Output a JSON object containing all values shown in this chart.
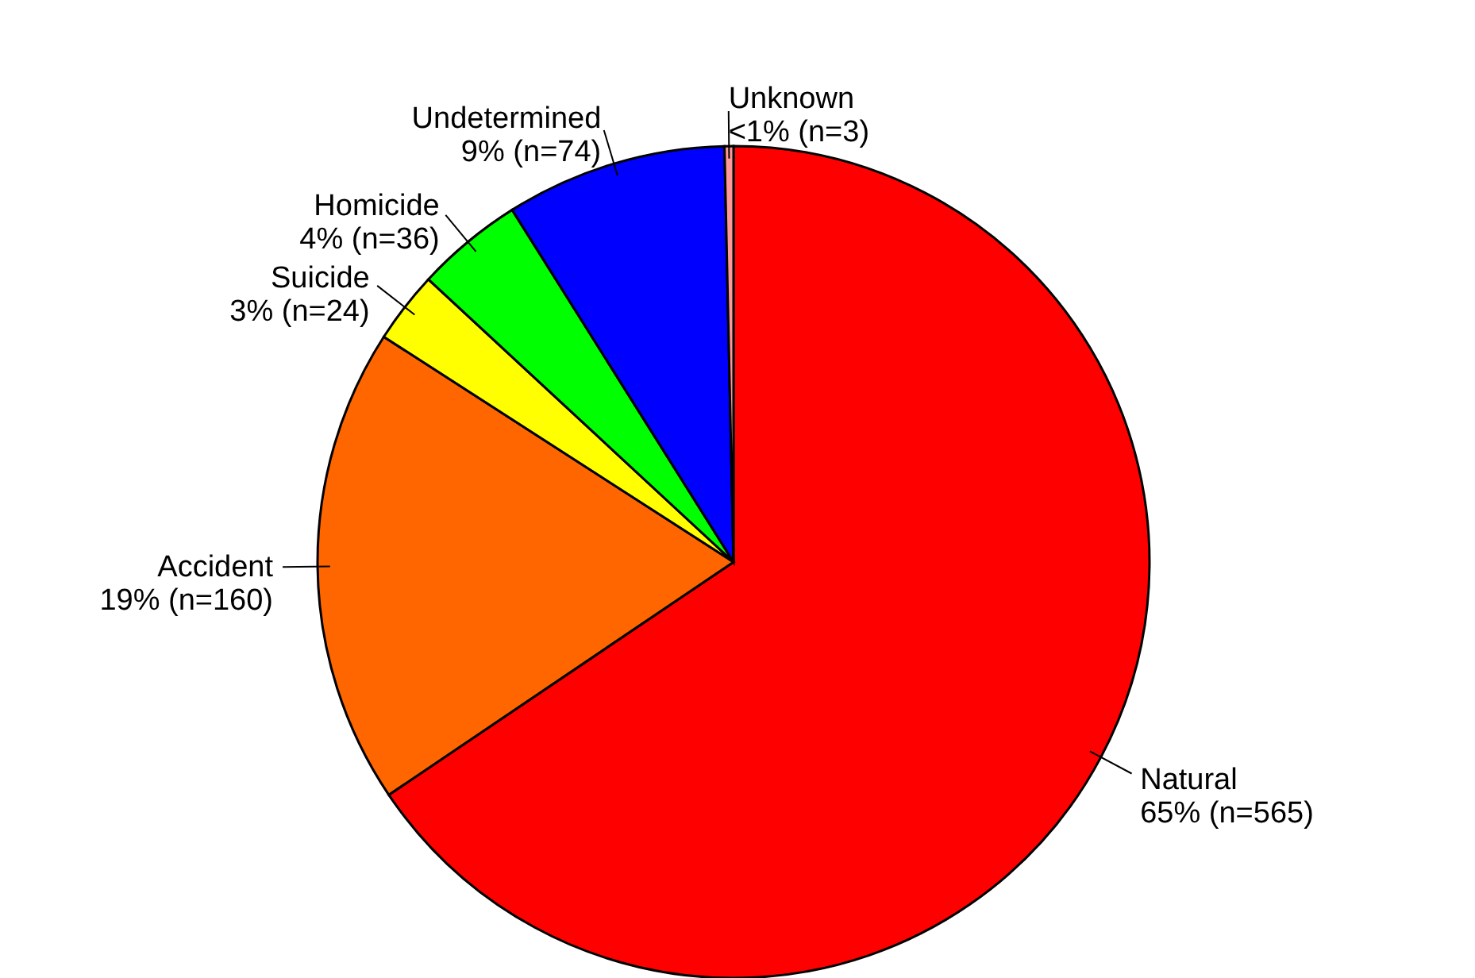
{
  "chart_data": {
    "type": "pie",
    "categories": [
      "Natural",
      "Accident",
      "Suicide",
      "Homicide",
      "Undetermined",
      "Unknown"
    ],
    "values": [
      565,
      160,
      24,
      36,
      74,
      3
    ],
    "colors": [
      "#ff0000",
      "#ff6600",
      "#ffff00",
      "#00ff00",
      "#0000ff",
      "#ff9999"
    ],
    "value_labels": [
      "65% (n=565)",
      "19% (n=160)",
      "3% (n=24)",
      "4% (n=36)",
      "9% (n=74)",
      "<1% (n=3)"
    ]
  }
}
